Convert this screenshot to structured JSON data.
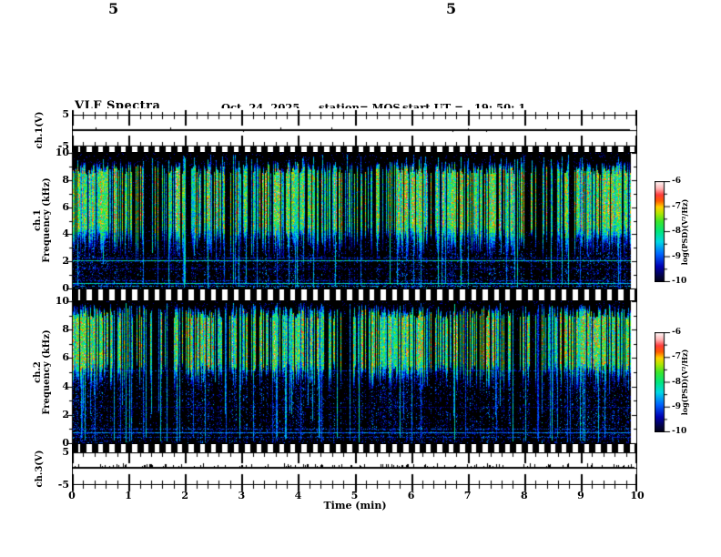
{
  "header": {
    "title": "VLF Spectra",
    "date": "Oct. 24, 2025",
    "station": "station= MOS",
    "start_ut": "start UT =   19: 50: 1"
  },
  "axes": {
    "time": {
      "label": "Time (min)",
      "range": [
        0,
        10
      ],
      "major_ticks": [
        "0",
        "1",
        "2",
        "3",
        "4",
        "5",
        "6",
        "7",
        "8",
        "9",
        "10"
      ],
      "minor_per_major": 5
    },
    "strip1": {
      "label": "ch.1(V)",
      "tick_labels": [
        "5",
        "-5"
      ],
      "range_v": [
        -5,
        5
      ]
    },
    "spec1": {
      "label_line1": "ch.1",
      "label_line2": "Frequency (kHz)",
      "tick_labels": [
        "10",
        "8",
        "6",
        "4",
        "2",
        "0"
      ],
      "range_khz": [
        0,
        10
      ]
    },
    "spec2": {
      "label_line1": "ch.2",
      "label_line2": "Frequency (kHz)",
      "tick_labels": [
        "10",
        "8",
        "6",
        "4",
        "2",
        "0"
      ],
      "range_khz": [
        0,
        10
      ]
    },
    "strip3": {
      "label": "ch.3(V)",
      "tick_labels": [
        "5",
        "-5"
      ],
      "range_v": [
        -5,
        5
      ]
    }
  },
  "colorbar": {
    "label": "log(PSD)(V²/Hz)",
    "tick_labels": [
      "-6",
      "-7",
      "-8",
      "-9",
      "-10"
    ],
    "range": [
      -10,
      -6
    ]
  },
  "colormap": {
    "stops": [
      [
        0.0,
        "#000000"
      ],
      [
        0.08,
        "#02023c"
      ],
      [
        0.18,
        "#0000b4"
      ],
      [
        0.3,
        "#0064ff"
      ],
      [
        0.42,
        "#00d8e6"
      ],
      [
        0.52,
        "#00e67d"
      ],
      [
        0.62,
        "#3ce62a"
      ],
      [
        0.7,
        "#b4e600"
      ],
      [
        0.76,
        "#ffd200"
      ],
      [
        0.82,
        "#ff5a00"
      ],
      [
        0.88,
        "#ff3c3c"
      ],
      [
        0.94,
        "#ffb4b4"
      ],
      [
        1.0,
        "#fff0f0"
      ]
    ]
  },
  "chart_data": [
    {
      "type": "line",
      "panel": "ch1_waveform",
      "x_range_min": [
        0,
        10
      ],
      "y_range_v": [
        -5,
        5
      ],
      "description": "ch.1 voltage vs time: essentially flat at 0 V with a few tiny glitches",
      "baseline_v": 0,
      "seed": 7,
      "blip_count": 9,
      "blip_max_v": 0.5
    },
    {
      "type": "heatmap",
      "panel": "ch1_spectrogram",
      "x_range_min": [
        0,
        10
      ],
      "y_range_khz": [
        0,
        10
      ],
      "color_range_logpsd": [
        -10,
        -6
      ],
      "description": "dense vertical sferic bursts mostly 3.5-9.5 kHz, red cores 5-8.5 kHz, dark cap above 9.5 kHz, narrow full-height lines, persistent carriers near 2.05 and 0.4 kHz",
      "seed": 101,
      "active_prob": 0.68,
      "band_khz": [
        3.1,
        9.4
      ],
      "core_khz": [
        4.6,
        8.7
      ],
      "top_dark_khz": 9.55,
      "sferic_prob": 0.09,
      "speckle": 0.05,
      "h_lines": [
        {
          "khz": 2.05,
          "v": 0.5,
          "solid": true
        },
        {
          "khz": 2.3,
          "v": 0.26,
          "solid": false
        },
        {
          "khz": 1.45,
          "v": 0.2,
          "solid": false
        },
        {
          "khz": 0.62,
          "v": 0.28,
          "solid": false
        },
        {
          "khz": 0.38,
          "v": 0.5,
          "solid": true
        },
        {
          "khz": 0.18,
          "v": 0.42,
          "solid": false
        }
      ]
    },
    {
      "type": "heatmap",
      "panel": "ch2_spectrogram",
      "x_range_min": [
        0,
        10
      ],
      "y_range_khz": [
        0,
        10
      ],
      "color_range_logpsd": [
        -10,
        -6
      ],
      "description": "bursts concentrated 5-9.8 kHz with red cores 6-9 kHz, sparser below 5 kHz, thin lines to bottom, faint carriers near 5.1, 1.0, 0.75, 0.45 kHz",
      "seed": 202,
      "active_prob": 0.66,
      "band_khz": [
        4.6,
        9.8
      ],
      "core_khz": [
        5.6,
        9.0
      ],
      "top_dark_khz": 9.92,
      "sferic_prob": 0.12,
      "speckle": 0.05,
      "h_lines": [
        {
          "khz": 5.1,
          "v": 0.25,
          "solid": false
        },
        {
          "khz": 2.55,
          "v": 0.16,
          "solid": false
        },
        {
          "khz": 1.0,
          "v": 0.3,
          "solid": false
        },
        {
          "khz": 0.75,
          "v": 0.38,
          "solid": true
        },
        {
          "khz": 0.45,
          "v": 0.3,
          "solid": false
        }
      ]
    },
    {
      "type": "line",
      "panel": "ch3_waveform",
      "x_range_min": [
        0,
        10
      ],
      "y_range_v": [
        -5,
        5
      ],
      "description": "ch.3 voltage vs time: flat at 0 V with many small positive spikes",
      "baseline_v": 0,
      "seed": 11,
      "spike_count": 130,
      "spike_max_v": 0.9
    }
  ]
}
